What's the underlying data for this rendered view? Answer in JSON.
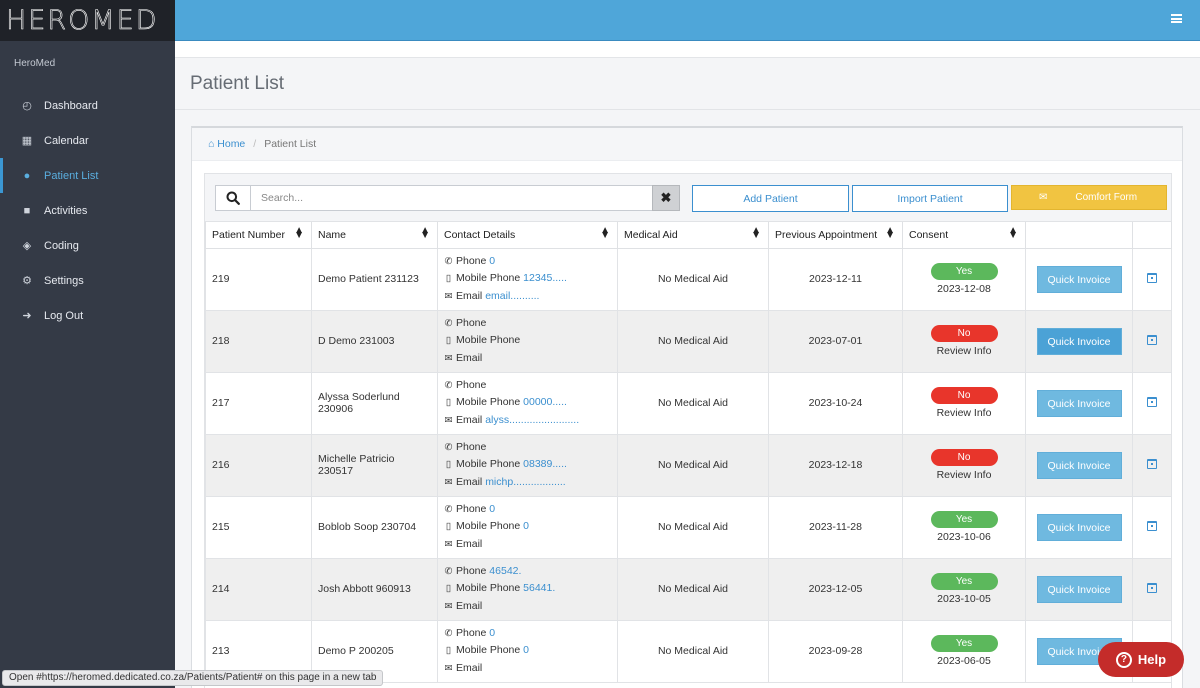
{
  "brand": {
    "logo_text": "HEROMED",
    "label": "HeroMed"
  },
  "sidebar": {
    "items": [
      {
        "label": "Dashboard",
        "icon": "dashboard-icon"
      },
      {
        "label": "Calendar",
        "icon": "calendar-icon"
      },
      {
        "label": "Patient List",
        "icon": "user-icon",
        "active": true
      },
      {
        "label": "Activities",
        "icon": "file-icon"
      },
      {
        "label": "Coding",
        "icon": "layers-icon"
      },
      {
        "label": "Settings",
        "icon": "gear-icon"
      },
      {
        "label": "Log Out",
        "icon": "sign-out-icon"
      }
    ]
  },
  "page": {
    "title": "Patient List"
  },
  "breadcrumb": {
    "home": "Home",
    "current": "Patient List"
  },
  "toolbar": {
    "search_placeholder": "Search...",
    "add_patient": "Add Patient",
    "import_patient": "Import Patient",
    "comfort_form": "Comfort Form"
  },
  "table": {
    "columns": [
      "Patient Number",
      "Name",
      "Contact Details",
      "Medical Aid",
      "Previous Appointment",
      "Consent",
      "",
      ""
    ],
    "action_label": "Quick Invoice",
    "labels": {
      "phone": "Phone",
      "mobile": "Mobile Phone",
      "email": "Email"
    },
    "rows": [
      {
        "number": "219",
        "name": "Demo Patient 231123",
        "phone": "0",
        "mobile": "12345.....",
        "email": "email..........",
        "medical_aid": "No Medical Aid",
        "previous_appointment": "2023-12-11",
        "consent": "Yes",
        "consent_sub": "2023-12-08"
      },
      {
        "number": "218",
        "name": "D Demo 231003",
        "phone": "",
        "mobile": "",
        "email": "",
        "medical_aid": "No Medical Aid",
        "previous_appointment": "2023-07-01",
        "consent": "No",
        "consent_sub": "Review Info"
      },
      {
        "number": "217",
        "name": "Alyssa Soderlund 230906",
        "phone": "",
        "mobile": "00000.....",
        "email": "alyss........................",
        "medical_aid": "No Medical Aid",
        "previous_appointment": "2023-10-24",
        "consent": "No",
        "consent_sub": "Review Info"
      },
      {
        "number": "216",
        "name": "Michelle Patricio 230517",
        "phone": "",
        "mobile": "08389.....",
        "email": "michp..................",
        "medical_aid": "No Medical Aid",
        "previous_appointment": "2023-12-18",
        "consent": "No",
        "consent_sub": "Review Info"
      },
      {
        "number": "215",
        "name": "Boblob Soop 230704",
        "phone": "0",
        "mobile": "0",
        "email": "",
        "medical_aid": "No Medical Aid",
        "previous_appointment": "2023-11-28",
        "consent": "Yes",
        "consent_sub": "2023-10-06"
      },
      {
        "number": "214",
        "name": "Josh Abbott 960913",
        "phone": "46542.",
        "mobile": "56441.",
        "email": "",
        "medical_aid": "No Medical Aid",
        "previous_appointment": "2023-12-05",
        "consent": "Yes",
        "consent_sub": "2023-10-05"
      },
      {
        "number": "213",
        "name": "Demo P 200205",
        "phone": "0",
        "mobile": "0",
        "email": "",
        "medical_aid": "No Medical Aid",
        "previous_appointment": "2023-09-28",
        "consent": "Yes",
        "consent_sub": "2023-06-05"
      }
    ]
  },
  "help": {
    "label": "Help"
  },
  "status_bar": {
    "text": "Open #https://heromed.dedicated.co.za/Patients/Patient# on this page in a new tab"
  },
  "colors": {
    "topbar": "#4fa6d9",
    "sidebar": "#343a46",
    "accent": "#3b8fcf",
    "yes": "#5cb85c",
    "no": "#e8352b",
    "comfort": "#f1c441",
    "help": "#c42c2a"
  }
}
